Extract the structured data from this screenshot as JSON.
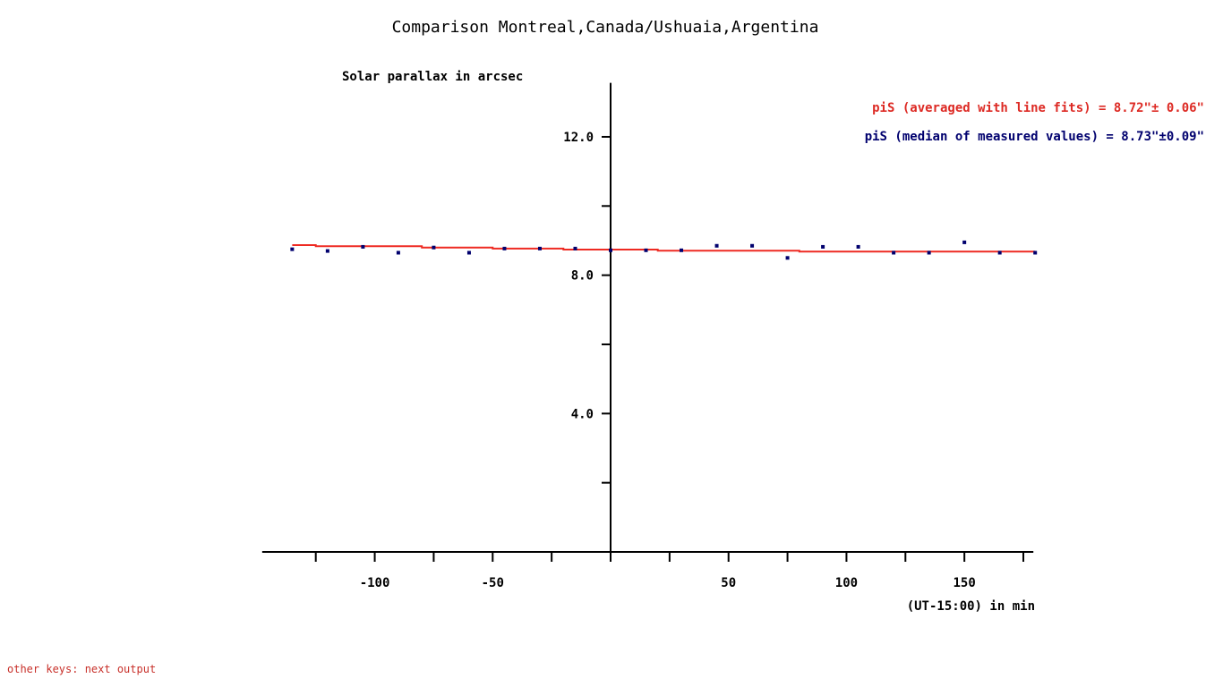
{
  "chart_data": {
    "type": "scatter",
    "title": "Comparison Montreal,Canada/Ushuaia,Argentina",
    "ylabel": "Solar parallax in arcsec",
    "xlabel": "(UT-15:00) in min",
    "xlim": [
      -150,
      180
    ],
    "ylim": [
      0,
      14
    ],
    "x_ticks": [
      -125,
      -100,
      -75,
      -50,
      -25,
      0,
      25,
      50,
      75,
      100,
      125,
      150,
      175
    ],
    "x_tick_labels": [
      {
        "value": -100,
        "label": "-100"
      },
      {
        "value": -50,
        "label": "-50"
      },
      {
        "value": 50,
        "label": "50"
      },
      {
        "value": 100,
        "label": "100"
      },
      {
        "value": 150,
        "label": "150"
      }
    ],
    "y_ticks": [
      2,
      4,
      6,
      8,
      10,
      12
    ],
    "y_tick_labels": [
      {
        "value": 4,
        "label": "4.0"
      },
      {
        "value": 8,
        "label": "8.0"
      },
      {
        "value": 12,
        "label": "12.0"
      }
    ],
    "annotations": [
      {
        "text": "piS (averaged with line fits) = 8.72\"± 0.06\"",
        "color": "#dd2a24"
      },
      {
        "text": "piS (median of measured values) = 8.73\"±0.09\"",
        "color": "#00006e"
      }
    ],
    "series": [
      {
        "type": "scatter",
        "color": "#00006e",
        "points": [
          [
            -135,
            8.75
          ],
          [
            -120,
            8.7
          ],
          [
            -105,
            8.82
          ],
          [
            -90,
            8.65
          ],
          [
            -75,
            8.8
          ],
          [
            -60,
            8.65
          ],
          [
            -45,
            8.77
          ],
          [
            -30,
            8.77
          ],
          [
            -15,
            8.77
          ],
          [
            0,
            8.72
          ],
          [
            15,
            8.72
          ],
          [
            30,
            8.72
          ],
          [
            45,
            8.85
          ],
          [
            60,
            8.85
          ],
          [
            75,
            8.5
          ],
          [
            90,
            8.82
          ],
          [
            105,
            8.82
          ],
          [
            120,
            8.65
          ],
          [
            135,
            8.65
          ],
          [
            150,
            8.95
          ],
          [
            165,
            8.65
          ],
          [
            180,
            8.65
          ]
        ]
      },
      {
        "type": "line",
        "color": "#ee2a22",
        "points": [
          [
            -135,
            8.87
          ],
          [
            -125,
            8.87
          ],
          [
            -125,
            8.84
          ],
          [
            -80,
            8.84
          ],
          [
            -80,
            8.8
          ],
          [
            -50,
            8.8
          ],
          [
            -50,
            8.77
          ],
          [
            -20,
            8.77
          ],
          [
            -20,
            8.74
          ],
          [
            20,
            8.74
          ],
          [
            20,
            8.71
          ],
          [
            80,
            8.71
          ],
          [
            80,
            8.68
          ],
          [
            180,
            8.68
          ]
        ]
      }
    ]
  },
  "footer": {
    "text": "other keys: next output",
    "color": "#c8302a"
  }
}
